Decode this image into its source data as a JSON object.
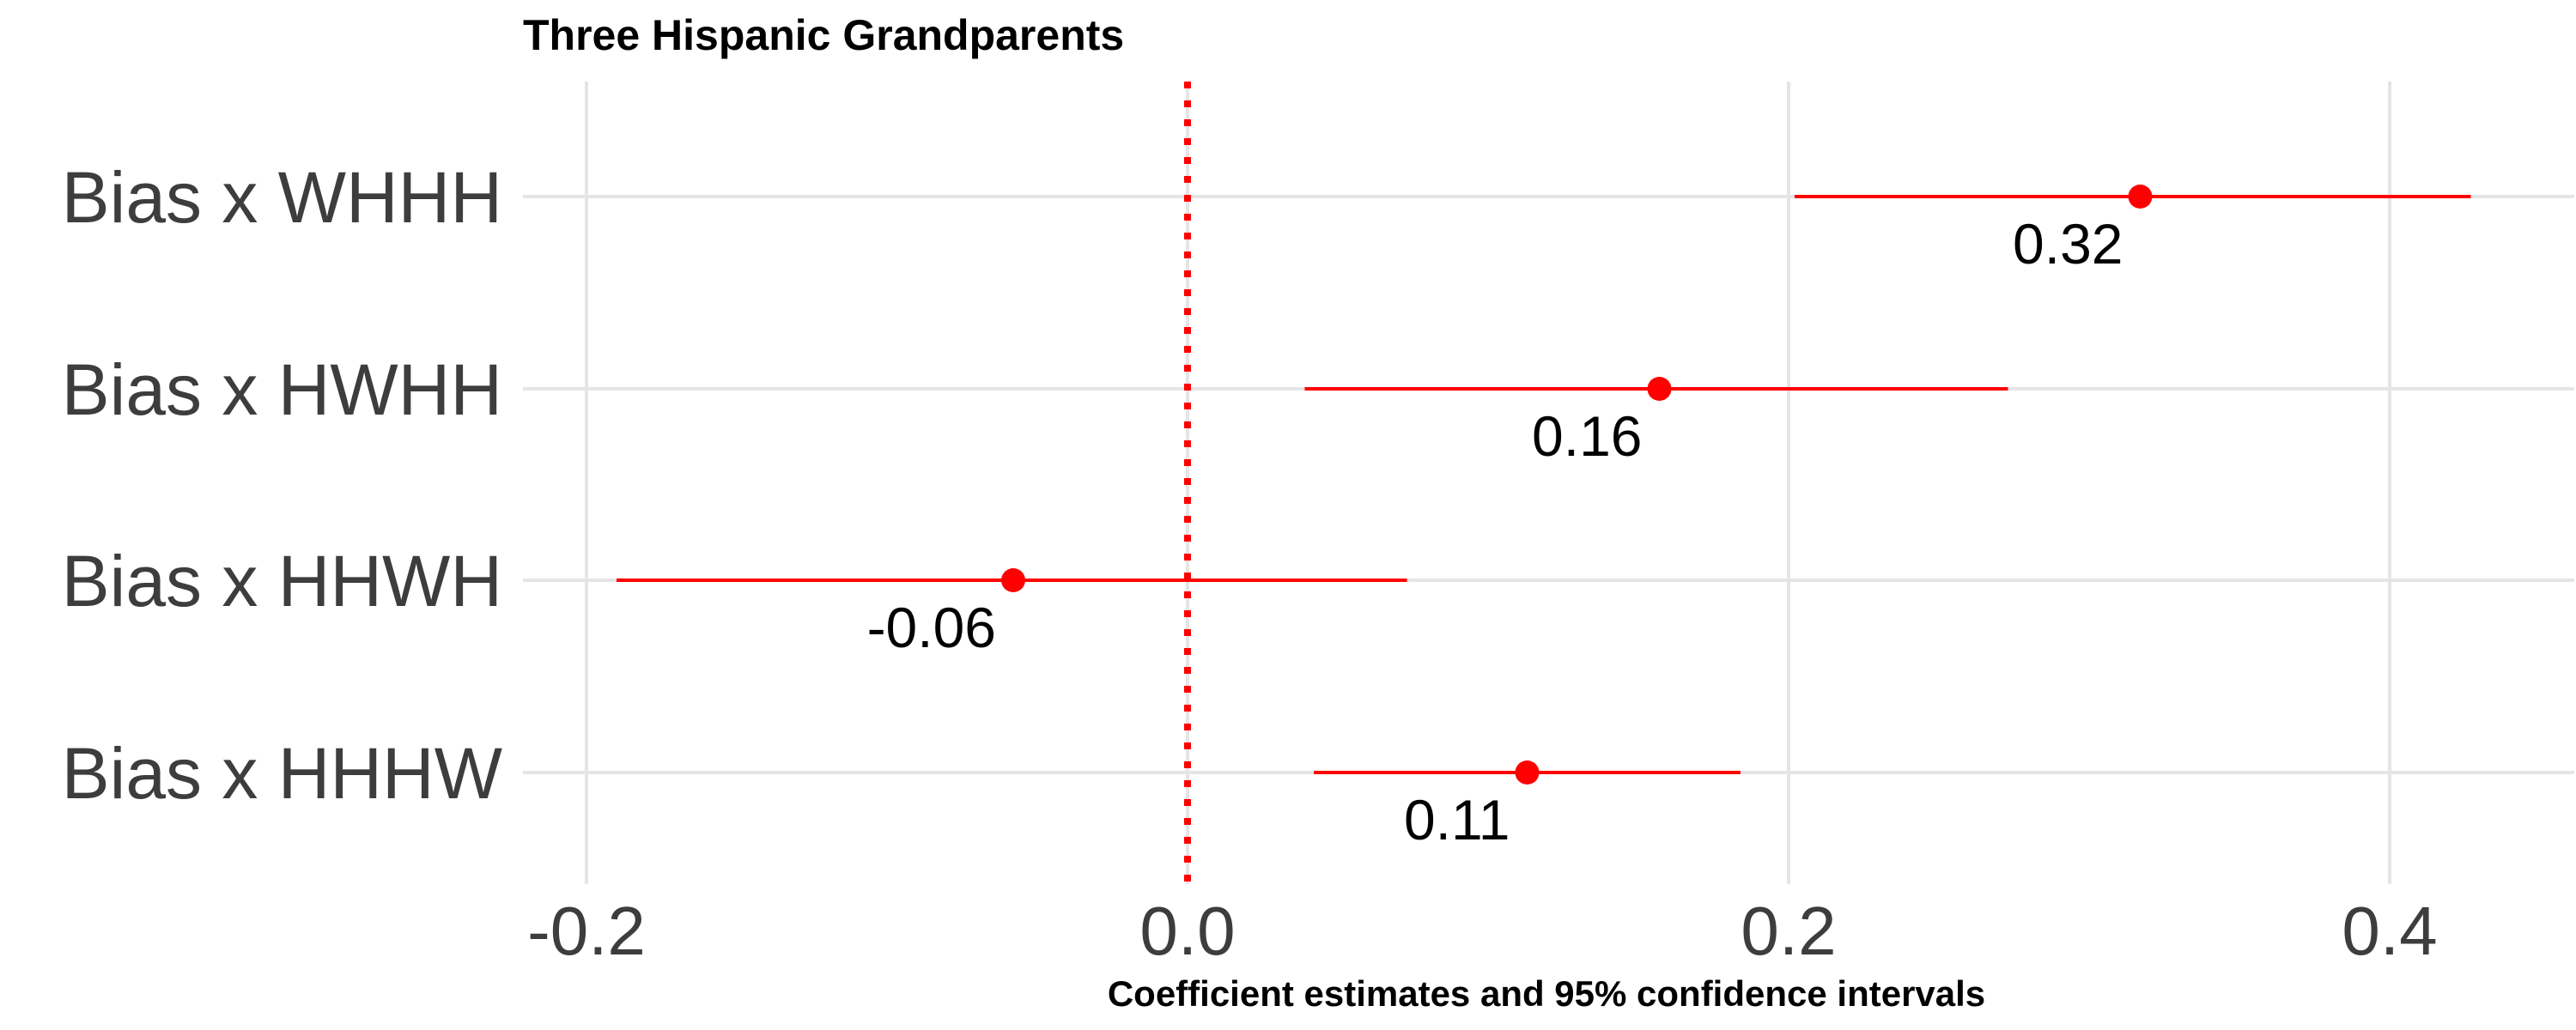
{
  "chart_data": {
    "type": "scatter",
    "title": "Three Hispanic Grandparents",
    "xlabel": "Coefficient estimates and 95% confidence intervals",
    "ylabel": "",
    "xlim": [
      -0.22,
      0.45
    ],
    "xticks": [
      -0.2,
      0.0,
      0.2,
      0.4
    ],
    "xtick_labels": [
      "-0.2",
      "0.0",
      "0.2",
      "0.4"
    ],
    "reference_line": 0.0,
    "grid": true,
    "categories": [
      "Bias x WHHH",
      "Bias x HWHH",
      "Bias x HHWH",
      "Bias x HHHW"
    ],
    "estimates": [
      0.317,
      0.157,
      -0.058,
      0.113
    ],
    "ci_low": [
      0.202,
      0.039,
      -0.19,
      0.042
    ],
    "ci_high": [
      0.427,
      0.273,
      0.073,
      0.184
    ],
    "labels": [
      "0.32",
      "0.16",
      "-0.06",
      "0.11"
    ],
    "colors": {
      "point": "#ff0000",
      "ref_line": "#ff0000",
      "grid": "#e5e5e5"
    }
  }
}
